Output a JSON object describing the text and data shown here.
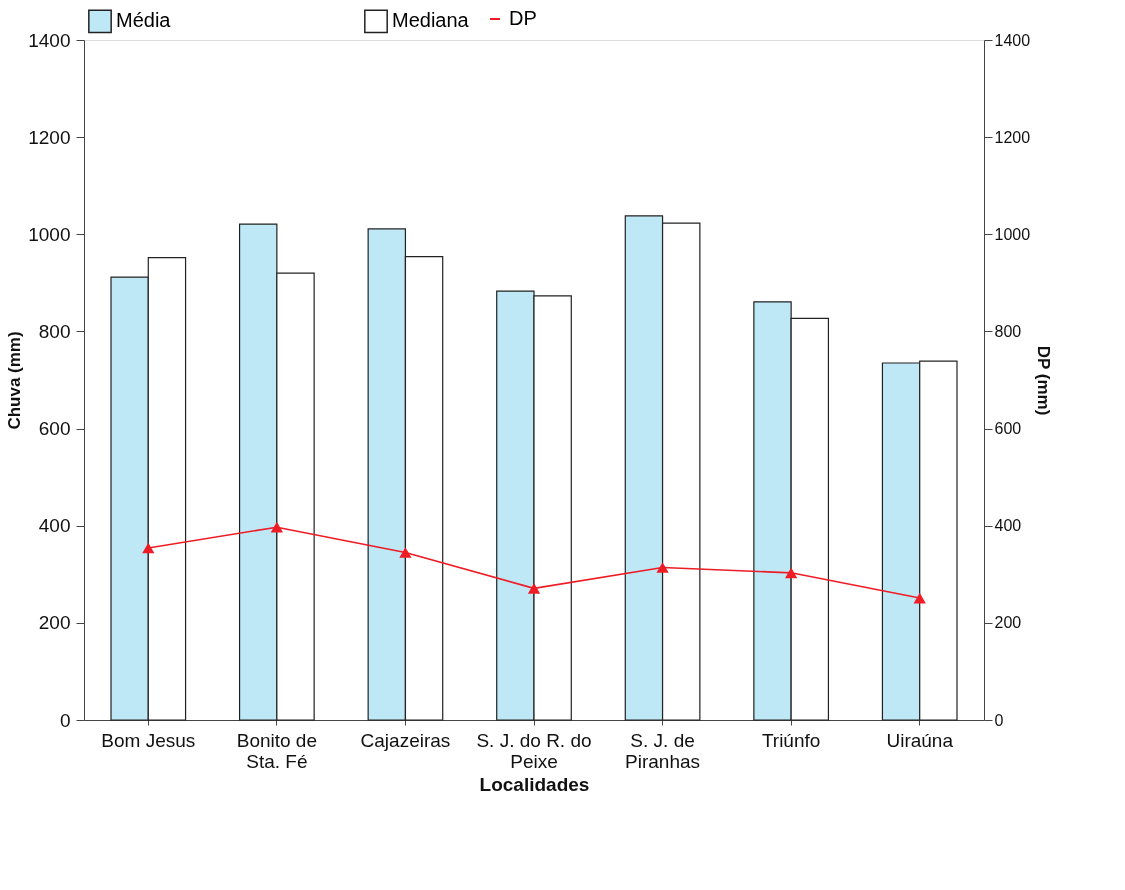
{
  "chart_data": {
    "type": "bar",
    "xlabel": "Localidades",
    "ylabel": "Chuva (mm)",
    "y2label": "DP (mm)",
    "categories": [
      "Bom Jesus",
      "Bonito de\nSta. Fé",
      "Cajazeiras",
      "S. J. do R. do\nPeixe",
      "S. J. de\nPiranhas",
      "Triúnfo",
      "Uiraúna"
    ],
    "series": [
      {
        "name": "Média",
        "color": "#bfe8f7",
        "values": [
          912,
          1021,
          1011,
          883,
          1038,
          861,
          735
        ]
      },
      {
        "name": "Mediana",
        "color": "#ffffff",
        "values": [
          952,
          920,
          954,
          873,
          1023,
          827,
          739
        ]
      },
      {
        "name": "DP",
        "type": "line",
        "axis": "y2",
        "color": "#ee1c25",
        "marker": "triangle",
        "values": [
          354,
          397,
          345,
          271,
          314,
          303,
          251
        ]
      }
    ],
    "ylim": [
      0,
      1400
    ],
    "yticks": [
      0,
      200,
      400,
      600,
      800,
      1000,
      1200,
      1400
    ],
    "y2lim": [
      0,
      1400
    ],
    "y2ticks": [
      0,
      200,
      400,
      600,
      800,
      1000,
      1200,
      1400
    ],
    "grid": false,
    "legend": "top"
  }
}
